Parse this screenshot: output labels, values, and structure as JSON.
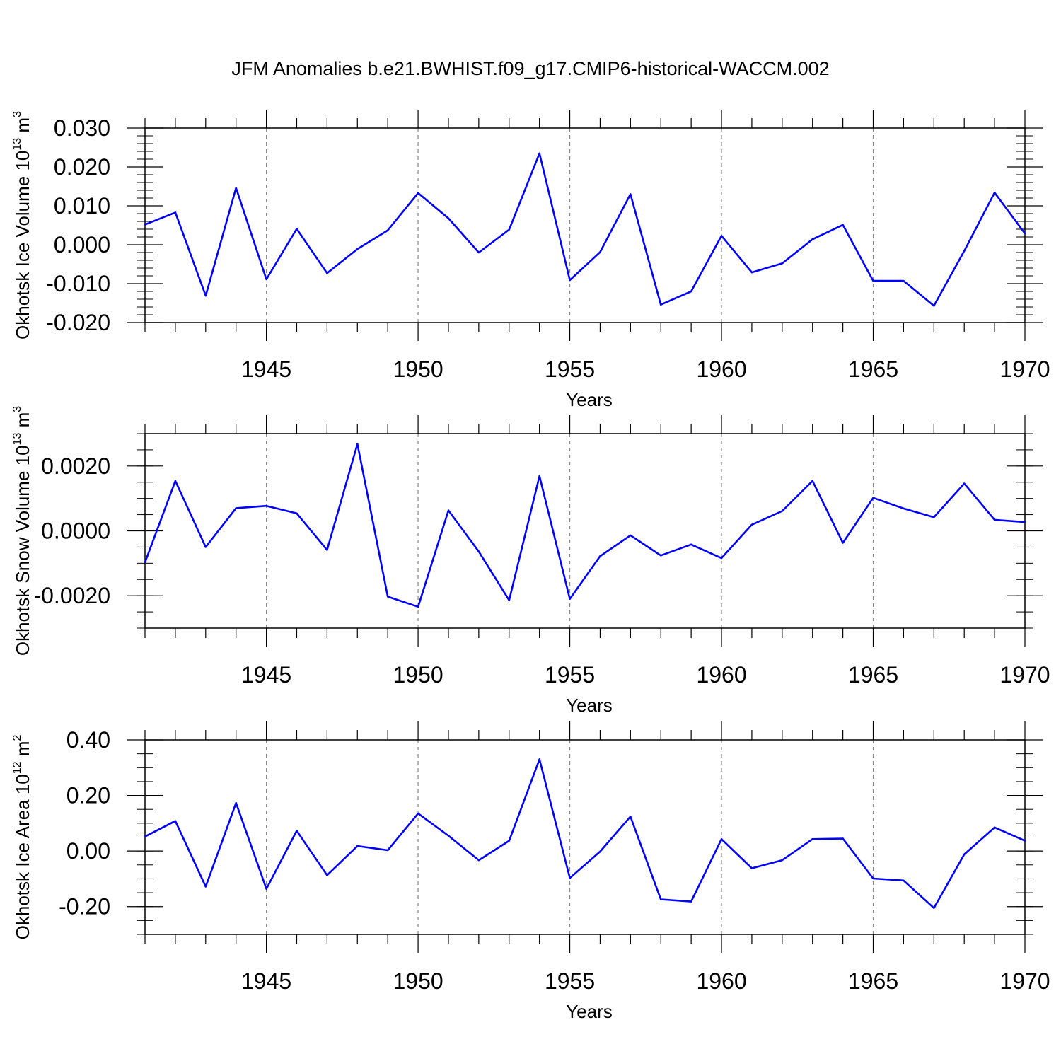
{
  "title": "JFM Anomalies b.e21.BWHIST.f09_g17.CMIP6-historical-WACCM.002",
  "line_color": "#0000ff",
  "grid_color": "#888888",
  "chart_data": [
    {
      "type": "line",
      "title": "JFM Anomalies b.e21.BWHIST.f09_g17.CMIP6-historical-WACCM.002",
      "xlabel": "Years",
      "ylabel_main": "Okhotsk Ice Volume 10",
      "ylabel_exp": "13",
      "ylabel_unit": " m",
      "ylabel_unit_exp": "3",
      "xlim": [
        1941,
        1970
      ],
      "ylim": [
        -0.02,
        0.03
      ],
      "x_ticks": [
        1945,
        1950,
        1955,
        1960,
        1965,
        1970
      ],
      "y_ticks": [
        -0.02,
        -0.01,
        0.0,
        0.01,
        0.02,
        0.03
      ],
      "y_tick_labels": [
        "-0.020",
        "-0.010",
        "0.000",
        "0.010",
        "0.020",
        "0.030"
      ],
      "y_minor_step": 0.002,
      "grid": "vertical dashed at major x ticks",
      "x": [
        1941,
        1942,
        1943,
        1944,
        1945,
        1946,
        1947,
        1948,
        1949,
        1950,
        1951,
        1952,
        1953,
        1954,
        1955,
        1956,
        1957,
        1958,
        1959,
        1960,
        1961,
        1962,
        1963,
        1964,
        1965,
        1966,
        1967,
        1968,
        1969,
        1970
      ],
      "y": [
        0.0052,
        0.0083,
        -0.0131,
        0.0146,
        -0.0089,
        0.0041,
        -0.0073,
        -0.0011,
        0.0037,
        0.0133,
        0.0068,
        -0.002,
        0.0039,
        0.0235,
        -0.0091,
        -0.0019,
        0.013,
        -0.0154,
        -0.012,
        0.0023,
        -0.0071,
        -0.0048,
        0.0014,
        0.0051,
        -0.0093,
        -0.0093,
        -0.0157,
        -0.0016,
        0.0134,
        0.0029
      ]
    },
    {
      "type": "line",
      "xlabel": "Years",
      "ylabel_main": "Okhotsk Snow Volume 10",
      "ylabel_exp": "13",
      "ylabel_unit": " m",
      "ylabel_unit_exp": "3",
      "xlim": [
        1941,
        1970
      ],
      "ylim": [
        -0.003,
        0.003
      ],
      "x_ticks": [
        1945,
        1950,
        1955,
        1960,
        1965,
        1970
      ],
      "y_ticks": [
        -0.002,
        0.0,
        0.002
      ],
      "y_tick_labels": [
        "-0.0020",
        "0.0000",
        "0.0020"
      ],
      "y_minor_step": 0.0005,
      "grid": "vertical dashed at major x ticks",
      "x": [
        1941,
        1942,
        1943,
        1944,
        1945,
        1946,
        1947,
        1948,
        1949,
        1950,
        1951,
        1952,
        1953,
        1954,
        1955,
        1956,
        1957,
        1958,
        1959,
        1960,
        1961,
        1962,
        1963,
        1964,
        1965,
        1966,
        1967,
        1968,
        1969,
        1970
      ],
      "y": [
        -0.00097,
        0.00154,
        -0.0005,
        0.0007,
        0.00077,
        0.00054,
        -0.00059,
        0.00268,
        -0.00203,
        -0.00234,
        0.00063,
        -0.00064,
        -0.00214,
        0.00169,
        -0.0021,
        -0.00078,
        -0.00014,
        -0.00076,
        -0.00042,
        -0.00084,
        0.00019,
        0.00061,
        0.00154,
        -0.00037,
        0.00102,
        0.00069,
        0.00042,
        0.00146,
        0.00034,
        0.00027
      ]
    },
    {
      "type": "line",
      "xlabel": "Years",
      "ylabel_main": "Okhotsk Ice Area 10",
      "ylabel_exp": "12",
      "ylabel_unit": " m",
      "ylabel_unit_exp": "2",
      "xlim": [
        1941,
        1970
      ],
      "ylim": [
        -0.3,
        0.4
      ],
      "x_ticks": [
        1945,
        1950,
        1955,
        1960,
        1965,
        1970
      ],
      "y_ticks": [
        -0.2,
        0.0,
        0.2,
        0.4
      ],
      "y_tick_labels": [
        "-0.20",
        "0.00",
        "0.20",
        "0.40"
      ],
      "y_minor_step": 0.05,
      "grid": "vertical dashed at major x ticks",
      "x": [
        1941,
        1942,
        1943,
        1944,
        1945,
        1946,
        1947,
        1948,
        1949,
        1950,
        1951,
        1952,
        1953,
        1954,
        1955,
        1956,
        1957,
        1958,
        1959,
        1960,
        1961,
        1962,
        1963,
        1964,
        1965,
        1966,
        1967,
        1968,
        1969,
        1970
      ],
      "y": [
        0.052,
        0.108,
        -0.128,
        0.173,
        -0.136,
        0.073,
        -0.087,
        0.018,
        0.003,
        0.135,
        0.055,
        -0.033,
        0.037,
        0.33,
        -0.097,
        -0.002,
        0.124,
        -0.174,
        -0.182,
        0.043,
        -0.062,
        -0.033,
        0.043,
        0.045,
        -0.099,
        -0.106,
        -0.205,
        -0.012,
        0.085,
        0.037
      ]
    }
  ]
}
